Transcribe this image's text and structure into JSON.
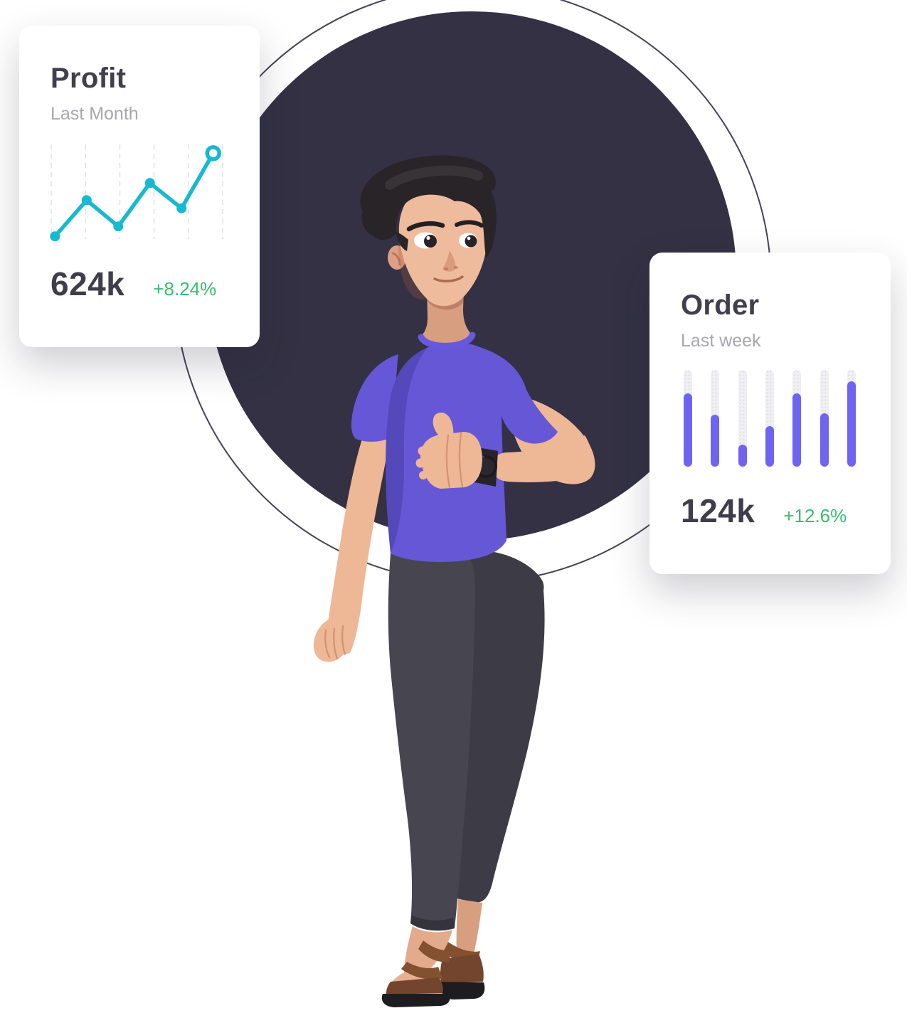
{
  "cards": {
    "profit": {
      "title": "Profit",
      "subtitle": "Last Month",
      "value": "624k",
      "delta": "+8.24%"
    },
    "order": {
      "title": "Order",
      "subtitle": "Last week",
      "value": "124k",
      "delta": "+12.6%"
    }
  },
  "chart_data": [
    {
      "type": "line",
      "title": "Profit",
      "subtitle": "Last Month",
      "summary_value": "624k",
      "summary_delta": "+8.24%",
      "x": [
        1,
        2,
        3,
        4,
        5,
        6
      ],
      "values": [
        3,
        43,
        14,
        62,
        34,
        95
      ],
      "ylim": [
        0,
        100
      ],
      "grid": "vertical-dashed",
      "gridline_count": 6,
      "line_color": "#17b9d0",
      "point_style": "filled-dot",
      "last_point_style": "hollow-ring",
      "legend": "none",
      "axes_labels": "none"
    },
    {
      "type": "bar",
      "title": "Order",
      "subtitle": "Last week",
      "summary_value": "124k",
      "summary_delta": "+12.6%",
      "values": [
        76,
        54,
        23,
        42,
        76,
        55,
        88
      ],
      "ylim": [
        0,
        100
      ],
      "bar_color": "#6f64f2",
      "track_color": "#f0f0f4",
      "bar_shape": "rounded-pill",
      "legend": "none",
      "axes_labels": "none"
    }
  ],
  "theme": {
    "card_bg": "#ffffff",
    "title_color": "#413e4e",
    "subtitle_color": "#a8a7b1",
    "value_color": "#3f3d4b",
    "positive_color": "#35bf6f",
    "line_accent": "#17b9d0",
    "bar_accent": "#6f64f2",
    "bar_track": "#f0f0f4",
    "grid_color": "#dfe2e8",
    "backdrop_fill": "#333143",
    "backdrop_outline": "#45435c"
  },
  "illustration": {
    "description": "3D man with dark hair and purple t-shirt giving a thumbs up, wearing a black wrist watch, dark capri pants and brown sandals",
    "skin": "#eeb795",
    "skin_shadow": "#d79e7f",
    "hair": "#292427",
    "shirt": "#6557d6",
    "pants": "#47454f",
    "pants_dark": "#3d3b45",
    "sandal": "#7b4a31",
    "sandal_dark": "#74452e",
    "sole": "#1d1c20",
    "watch": "#26232a"
  }
}
